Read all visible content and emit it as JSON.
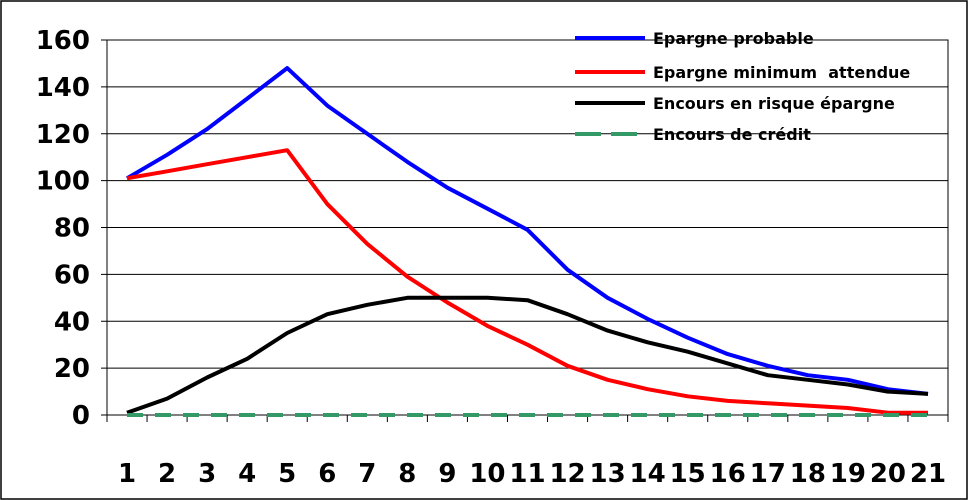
{
  "chart_data": {
    "type": "line",
    "x": [
      1,
      2,
      3,
      4,
      5,
      6,
      7,
      8,
      9,
      10,
      11,
      12,
      13,
      14,
      15,
      16,
      17,
      18,
      19,
      20,
      21
    ],
    "x_tick_labels": [
      "1",
      "2",
      "3",
      "4",
      "5",
      "6",
      "7",
      "8",
      "9",
      "10",
      "11",
      "12",
      "13",
      "14",
      "15",
      "16",
      "17",
      "18",
      "19",
      "20",
      "21"
    ],
    "ylim": [
      0,
      160
    ],
    "y_tick_labels": [
      "0",
      "20",
      "40",
      "60",
      "80",
      "100",
      "120",
      "140",
      "160"
    ],
    "y_ticks": [
      0,
      20,
      40,
      60,
      80,
      100,
      120,
      140,
      160
    ],
    "grid": "horizontal",
    "legend_position": "top-right",
    "series": [
      {
        "name": "Epargne probable",
        "color": "#0000ff",
        "dash": "solid",
        "values": [
          101,
          111,
          122,
          135,
          148,
          132,
          120,
          108,
          97,
          88,
          79,
          62,
          50,
          41,
          33,
          26,
          21,
          17,
          15,
          11,
          9
        ]
      },
      {
        "name": "Epargne minimum  attendue",
        "color": "#ff0000",
        "dash": "solid",
        "values": [
          101,
          104,
          107,
          110,
          113,
          90,
          73,
          59,
          48,
          38,
          30,
          21,
          15,
          11,
          8,
          6,
          5,
          4,
          3,
          1,
          1
        ]
      },
      {
        "name": "Encours en risque épargne",
        "color": "#000000",
        "dash": "solid",
        "values": [
          1,
          7,
          16,
          24,
          35,
          43,
          47,
          50,
          50,
          50,
          49,
          43,
          36,
          31,
          27,
          22,
          17,
          15,
          13,
          10,
          9
        ]
      },
      {
        "name": "Encours de crédit",
        "color": "#339966",
        "dash": "dashed",
        "values": [
          0,
          0,
          0,
          0,
          0,
          0,
          0,
          0,
          0,
          0,
          0,
          0,
          0,
          0,
          0,
          0,
          0,
          0,
          0,
          0,
          0
        ]
      }
    ]
  }
}
